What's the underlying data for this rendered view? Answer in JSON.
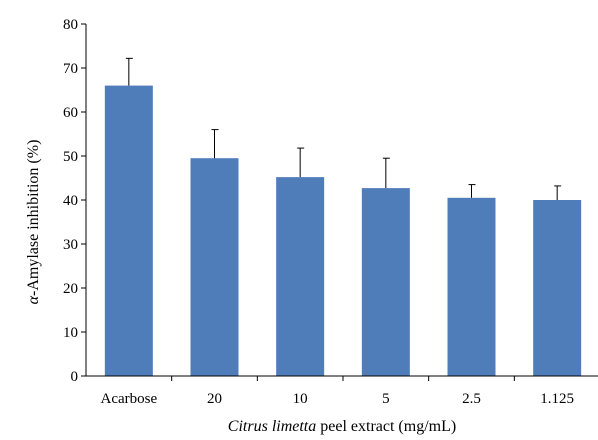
{
  "chart_data": {
    "type": "bar",
    "title": "",
    "xlabel_italic": "Citrus limetta",
    "xlabel_rest": " peel extract (mg/mL)",
    "ylabel_symbol": "α",
    "ylabel_rest": "-Amylase inhibition (%)",
    "categories": [
      "Acarbose",
      "20",
      "10",
      "5",
      "2.5",
      "1.125"
    ],
    "values": [
      66.0,
      49.5,
      45.2,
      42.7,
      40.5,
      40.0
    ],
    "errors": [
      6.2,
      6.5,
      6.6,
      6.8,
      3.0,
      3.2
    ],
    "ylim": [
      0,
      80
    ],
    "yticks": [
      0,
      10,
      20,
      30,
      40,
      50,
      60,
      70,
      80
    ],
    "grid": false,
    "legend": "none",
    "bar_color": "#4f7dba"
  }
}
